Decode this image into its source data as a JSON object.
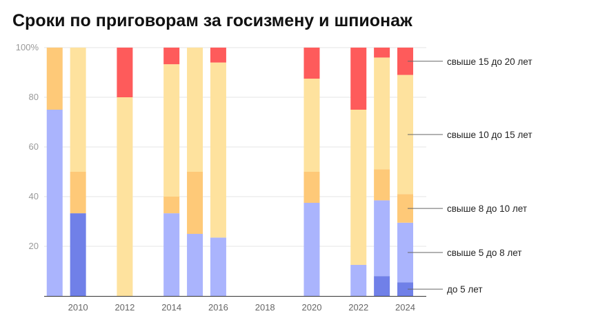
{
  "chart_data": {
    "type": "bar",
    "stacked": true,
    "title": "Сроки по приговорам за госизмену и шпионаж",
    "xlabel": "",
    "ylabel": "",
    "ylim": [
      0,
      100
    ],
    "y_ticks": [
      "20",
      "40",
      "60",
      "80",
      "100%"
    ],
    "y_tick_values": [
      20,
      40,
      60,
      80,
      100
    ],
    "x_ticks": [
      "2010",
      "2012",
      "2014",
      "2016",
      "2018",
      "2020",
      "2022",
      "2024"
    ],
    "x_tick_values": [
      2010,
      2012,
      2014,
      2016,
      2018,
      2020,
      2022,
      2024
    ],
    "years": [
      2009,
      2010,
      2012,
      2014,
      2015,
      2016,
      2020,
      2022,
      2023,
      2024
    ],
    "grid": true,
    "legend_placement": "right, labels aligned to segments of the last bar",
    "series": [
      {
        "name": "до 5 лет",
        "color": "#7080e8",
        "values": [
          0,
          33.3,
          0,
          0,
          0,
          0,
          0,
          0,
          8,
          5.5
        ]
      },
      {
        "name": "свыше 5 до 8 лет",
        "color": "#aab4fd",
        "values": [
          75,
          0,
          0,
          33.3,
          25,
          23.5,
          37.5,
          12.5,
          30.5,
          24
        ]
      },
      {
        "name": "свыше 8 до 10 лет",
        "color": "#fec978",
        "values": [
          25,
          16.7,
          0,
          6.7,
          25,
          0,
          12.5,
          0,
          12.5,
          11.5
        ]
      },
      {
        "name": "свыше 10 до 15 лет",
        "color": "#fee29e",
        "values": [
          0,
          50,
          80,
          53.3,
          50,
          70.5,
          37.5,
          62.5,
          45,
          48
        ]
      },
      {
        "name": "свыше 15 до 20 лет",
        "color": "#fe5b5b",
        "values": [
          0,
          0,
          20,
          6.7,
          0,
          6,
          12.5,
          25,
          4,
          11
        ]
      }
    ],
    "legend": [
      {
        "label": "свыше 15 до 20 лет",
        "series": 4
      },
      {
        "label": "свыше 10 до 15 лет",
        "series": 3
      },
      {
        "label": "свыше 8 до 10 лет",
        "series": 2
      },
      {
        "label": "свыше 5 до 8 лет",
        "series": 1
      },
      {
        "label": "до 5 лет",
        "series": 0
      }
    ]
  }
}
